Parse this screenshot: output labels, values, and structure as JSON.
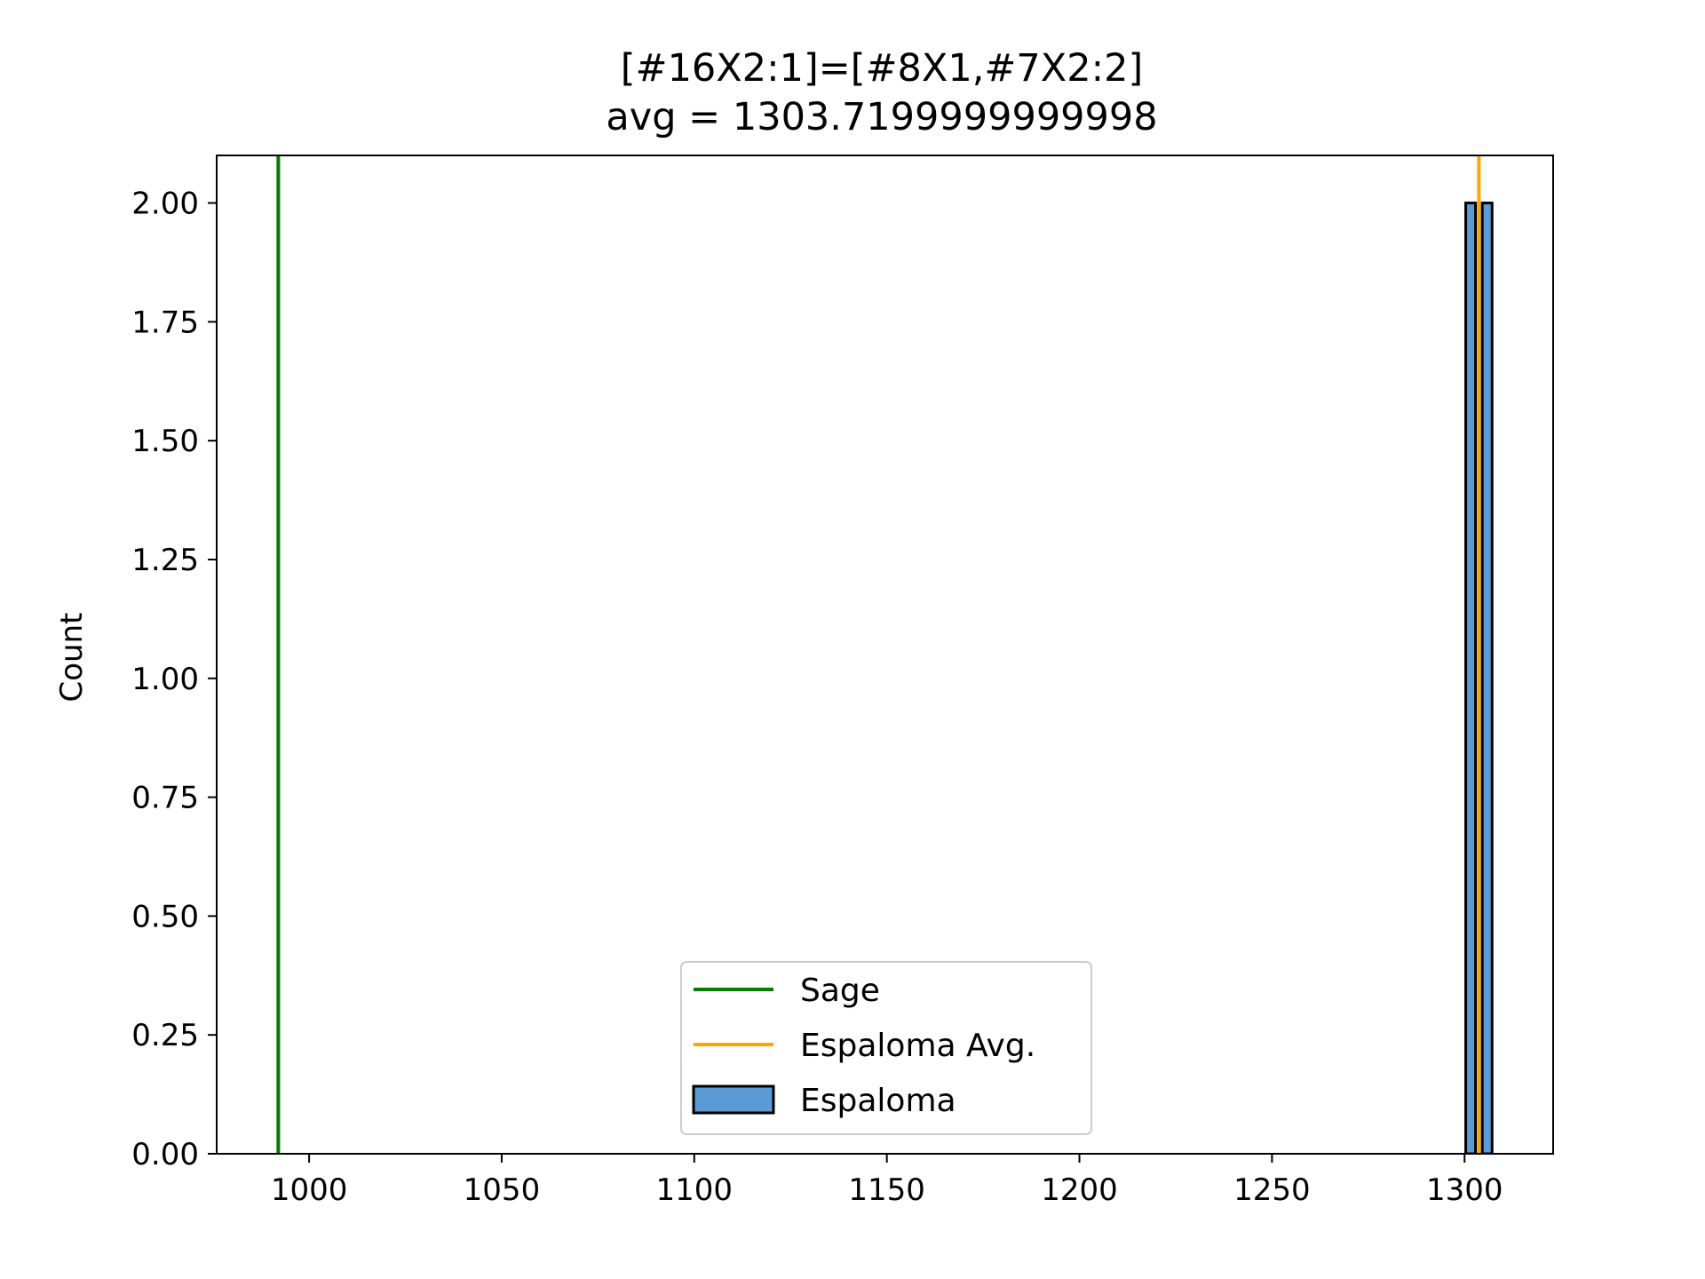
{
  "chart_data": {
    "type": "bar",
    "title": "[#16X2:1]=[#8X1,#7X2:2]",
    "subtitle": "avg = 1303.7199999999998",
    "xlabel": "",
    "ylabel": "Count",
    "xlim": [
      976,
      1323
    ],
    "ylim": [
      0,
      2.1
    ],
    "x_ticks": [
      1000,
      1050,
      1100,
      1150,
      1200,
      1250,
      1300
    ],
    "x_tick_labels": [
      "1000",
      "1050",
      "1100",
      "1150",
      "1200",
      "1250",
      "1300"
    ],
    "y_ticks": [
      0,
      0.25,
      0.5,
      0.75,
      1.0,
      1.25,
      1.5,
      1.75,
      2.0
    ],
    "y_tick_labels": [
      "0.00",
      "0.25",
      "0.50",
      "0.75",
      "1.00",
      "1.25",
      "1.50",
      "1.75",
      "2.00"
    ],
    "grid": false,
    "legend_position": "lower-center",
    "histogram": {
      "name": "Espaloma",
      "color": "#5b9bd5",
      "edge_color": "#000000",
      "bins": [
        {
          "x0": 1300.3,
          "x1": 1302.85,
          "count": 2
        },
        {
          "x0": 1304.6,
          "x1": 1307.15,
          "count": 2
        }
      ]
    },
    "vlines": [
      {
        "name": "Sage",
        "x": 992,
        "color": "#008000"
      },
      {
        "name": "Espaloma Avg.",
        "x": 1303.72,
        "color": "#ffa500"
      }
    ],
    "legend": [
      {
        "label": "Sage",
        "kind": "line",
        "color": "#008000"
      },
      {
        "label": "Espaloma Avg.",
        "kind": "line",
        "color": "#ffa500"
      },
      {
        "label": "Espaloma",
        "kind": "patch",
        "color": "#5b9bd5"
      }
    ]
  }
}
